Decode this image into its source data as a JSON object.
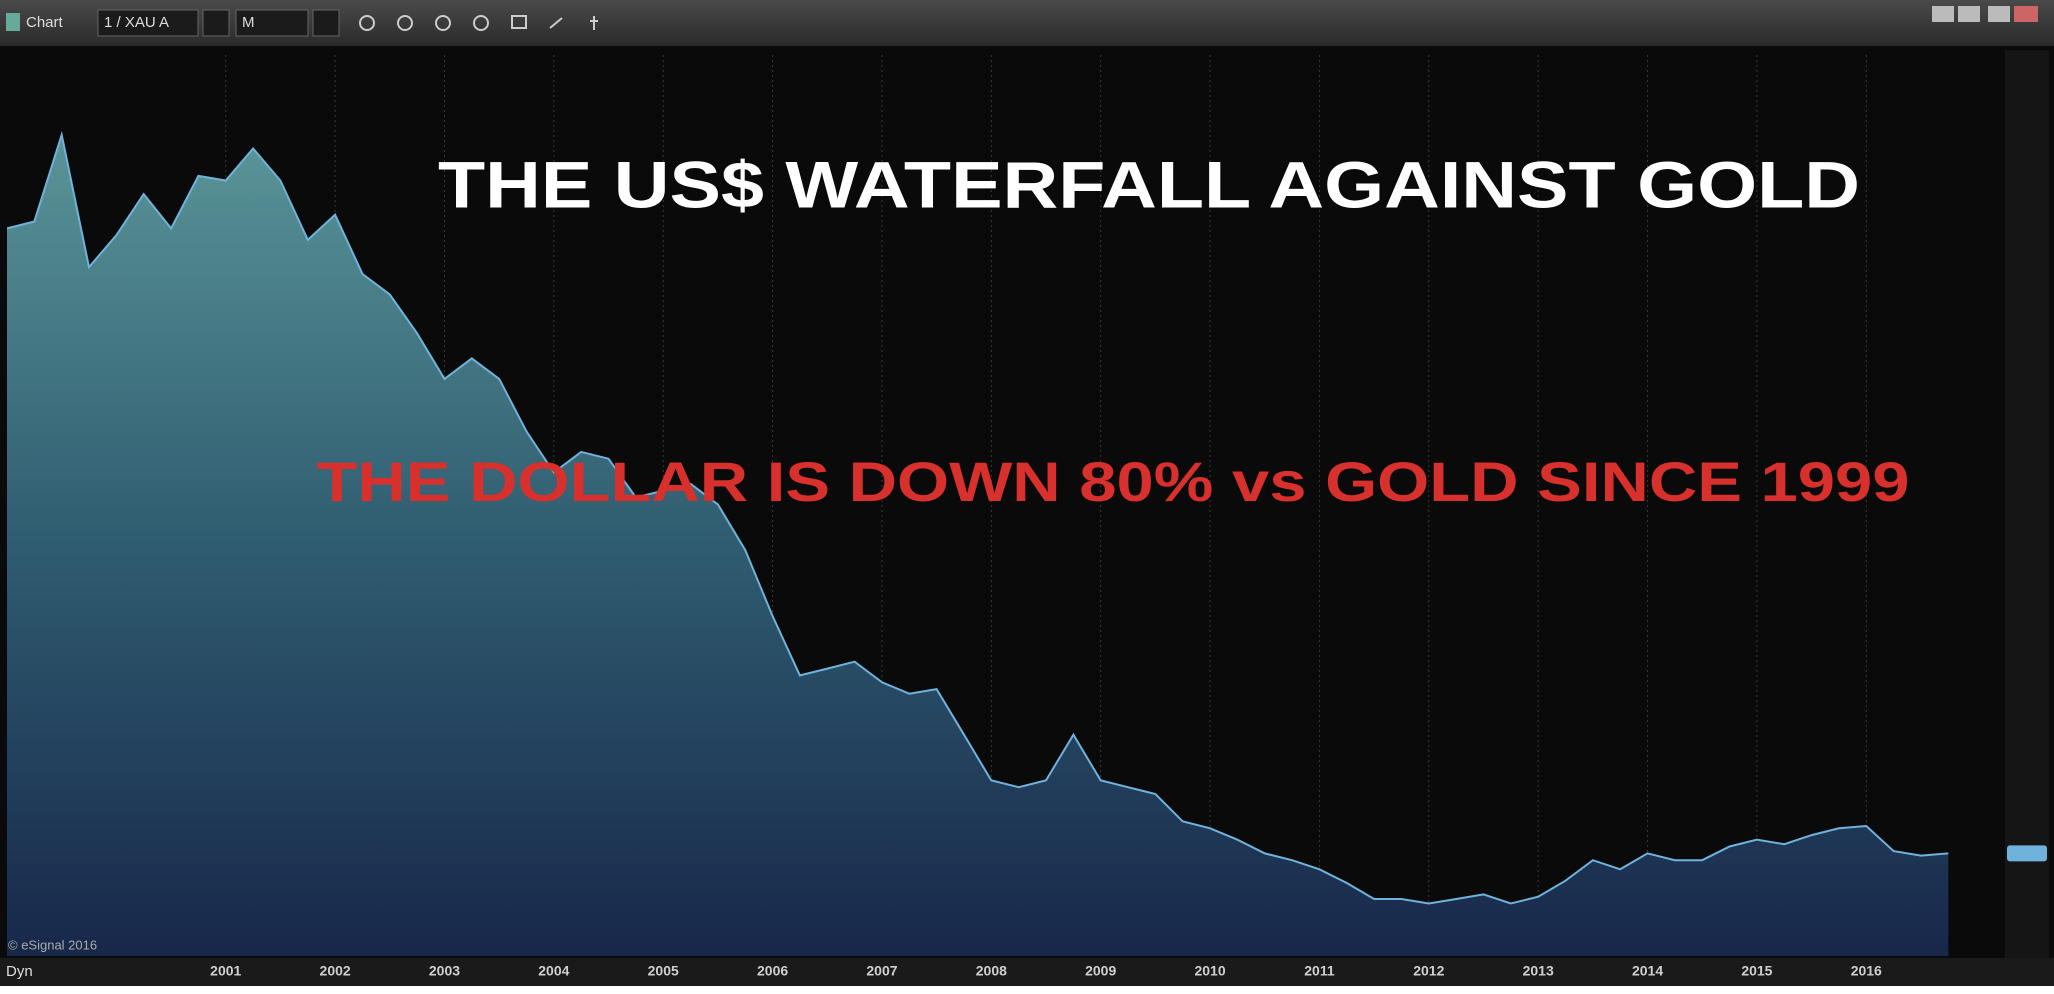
{
  "toolbar": {
    "title": "Chart",
    "symbol": "1 / XAU A",
    "interval": "M"
  },
  "footer": {
    "mode": "Dyn",
    "copyright": "© eSignal 2016"
  },
  "chart_data": {
    "type": "area",
    "title": "THE US$ WATERFALL AGAINST GOLD",
    "annotation": "THE DOLLAR IS DOWN 80% vs GOLD SINCE 1999",
    "x": [
      1999,
      1999.25,
      1999.5,
      1999.75,
      2000,
      2000.25,
      2000.5,
      2000.75,
      2001,
      2001.25,
      2001.5,
      2001.75,
      2002,
      2002.25,
      2002.5,
      2002.75,
      2003,
      2003.25,
      2003.5,
      2003.75,
      2004,
      2004.25,
      2004.5,
      2004.75,
      2005,
      2005.25,
      2005.5,
      2005.75,
      2006,
      2006.25,
      2006.5,
      2006.75,
      2007,
      2007.25,
      2007.5,
      2007.75,
      2008,
      2008.25,
      2008.5,
      2008.75,
      2009,
      2009.25,
      2009.5,
      2009.75,
      2010,
      2010.25,
      2010.5,
      2010.75,
      2011,
      2011.25,
      2011.5,
      2011.75,
      2012,
      2012.25,
      2012.5,
      2012.75,
      2013,
      2013.25,
      2013.5,
      2013.75,
      2014,
      2014.25,
      2014.5,
      2014.75,
      2015,
      2015.25,
      2015.5,
      2015.75,
      2016,
      2016.25,
      2016.5,
      2016.75
    ],
    "values": [
      3.54,
      3.57,
      3.95,
      3.37,
      3.51,
      3.69,
      3.54,
      3.77,
      3.75,
      3.89,
      3.75,
      3.49,
      3.6,
      3.34,
      3.25,
      3.08,
      2.88,
      2.97,
      2.88,
      2.65,
      2.47,
      2.56,
      2.53,
      2.36,
      2.39,
      2.42,
      2.33,
      2.13,
      1.84,
      1.58,
      1.61,
      1.64,
      1.55,
      1.5,
      1.52,
      1.32,
      1.12,
      1.09,
      1.12,
      1.32,
      1.12,
      1.09,
      1.06,
      0.94,
      0.91,
      0.86,
      0.8,
      0.77,
      0.73,
      0.67,
      0.6,
      0.6,
      0.58,
      0.6,
      0.62,
      0.58,
      0.61,
      0.68,
      0.77,
      0.73,
      0.8,
      0.77,
      0.77,
      0.83,
      0.86,
      0.84,
      0.88,
      0.91,
      0.92,
      0.81,
      0.79,
      0.8
    ],
    "color": "#6fb3dc",
    "xlim": [
      1999,
      2017.25
    ],
    "ylim": [
      0.35,
      4.3
    ],
    "xticks": [
      2001,
      2002,
      2003,
      2004,
      2005,
      2006,
      2007,
      2008,
      2009,
      2010,
      2011,
      2012,
      2013,
      2014,
      2015,
      2016
    ],
    "grid": true
  }
}
